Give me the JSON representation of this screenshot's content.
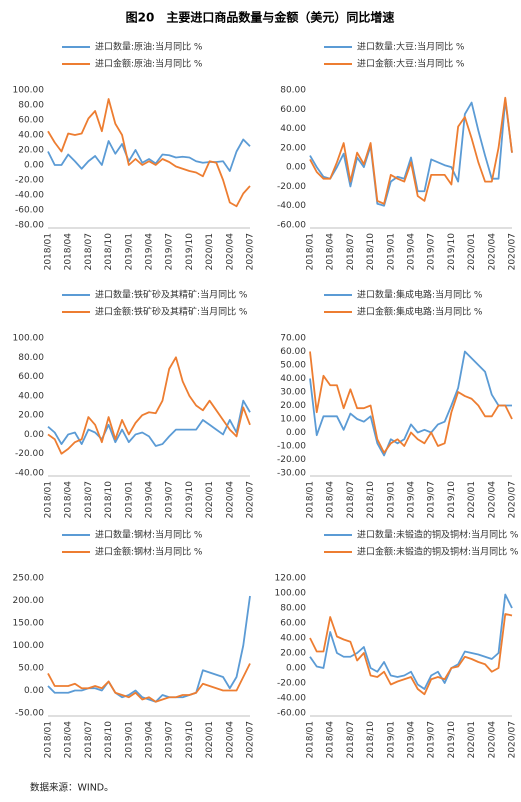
{
  "title": "图20　主要进口商品数量与金额（美元）同比增速",
  "source": "数据来源：WIND。",
  "chart_data": [
    {
      "type": "line",
      "categories": [
        "2018/01",
        null,
        null,
        "2018/04",
        null,
        null,
        "2018/07",
        null,
        null,
        "2018/10",
        null,
        null,
        "2019/01",
        null,
        null,
        "2019/04",
        null,
        null,
        "2019/07",
        null,
        null,
        "2019/10",
        null,
        null,
        "2020/01",
        null,
        null,
        "2020/04",
        null,
        null,
        "2020/07"
      ],
      "ylim": [
        -80,
        100
      ],
      "yticks": [
        {
          "value": 100,
          "label": "100.00"
        },
        {
          "value": 80,
          "label": "80.00"
        },
        {
          "value": 60,
          "label": "60.00"
        },
        {
          "value": 40,
          "label": "40.00"
        },
        {
          "value": 20,
          "label": "20.00"
        },
        {
          "value": 0,
          "label": "0.00"
        },
        {
          "value": -20,
          "label": "-20.00"
        },
        {
          "value": -40,
          "label": "-40.00"
        },
        {
          "value": -60,
          "label": "-60.00"
        },
        {
          "value": -80,
          "label": "-80.00"
        }
      ],
      "series": [
        {
          "name": "进口数量:原油:当月同比 %",
          "color": "#5b9bd5",
          "values": [
            18,
            0,
            0,
            14,
            5,
            -5,
            5,
            12,
            0,
            32,
            15,
            28,
            5,
            20,
            3,
            8,
            2,
            14,
            13,
            10,
            11,
            10,
            5,
            3,
            4,
            4,
            5,
            -8,
            18,
            34,
            25
          ]
        },
        {
          "name": "进口金额:原油:当月同比 %",
          "color": "#ed7d31",
          "values": [
            45,
            30,
            18,
            42,
            40,
            42,
            62,
            72,
            45,
            88,
            55,
            40,
            0,
            8,
            0,
            5,
            0,
            8,
            4,
            -2,
            -5,
            -8,
            -10,
            -15,
            5,
            3,
            -20,
            -50,
            -55,
            -38,
            -28
          ]
        }
      ]
    },
    {
      "type": "line",
      "categories": [
        "2018/01",
        null,
        null,
        "2018/04",
        null,
        null,
        "2018/07",
        null,
        null,
        "2018/10",
        null,
        null,
        "2019/01",
        null,
        null,
        "2019/04",
        null,
        null,
        "2019/07",
        null,
        null,
        "2019/10",
        null,
        null,
        "2020/01",
        null,
        null,
        "2020/04",
        null,
        null,
        "2020/07"
      ],
      "ylim": [
        -60,
        80
      ],
      "yticks": [
        {
          "value": 80,
          "label": "80.00"
        },
        {
          "value": 60,
          "label": "60.00"
        },
        {
          "value": 40,
          "label": "40.00"
        },
        {
          "value": 20,
          "label": "20.00"
        },
        {
          "value": 0,
          "label": "0.00"
        },
        {
          "value": -20,
          "label": "-20.00"
        },
        {
          "value": -40,
          "label": "-40.00"
        },
        {
          "value": -60,
          "label": "-60.00"
        }
      ],
      "series": [
        {
          "name": "进口数量:大豆:当月同比 %",
          "color": "#5b9bd5",
          "values": [
            12,
            0,
            -10,
            -12,
            0,
            14,
            -20,
            10,
            0,
            22,
            -38,
            -40,
            -15,
            -10,
            -12,
            10,
            -25,
            -25,
            8,
            5,
            2,
            0,
            -15,
            55,
            67,
            38,
            12,
            -12,
            -12,
            70,
            15
          ]
        },
        {
          "name": "进口金额:大豆:当月同比 %",
          "color": "#ed7d31",
          "values": [
            8,
            -5,
            -12,
            -12,
            5,
            25,
            -15,
            15,
            3,
            25,
            -35,
            -38,
            -8,
            -12,
            -15,
            5,
            -30,
            -35,
            -8,
            -8,
            -8,
            -18,
            42,
            52,
            30,
            5,
            -15,
            -15,
            20,
            72,
            15
          ]
        }
      ]
    },
    {
      "type": "line",
      "categories": [
        "2018/01",
        null,
        null,
        "2018/04",
        null,
        null,
        "2018/07",
        null,
        null,
        "2018/10",
        null,
        null,
        "2019/01",
        null,
        null,
        "2019/04",
        null,
        null,
        "2019/07",
        null,
        null,
        "2019/10",
        null,
        null,
        "2020/01",
        null,
        null,
        "2020/04",
        null,
        null,
        "2020/07"
      ],
      "ylim": [
        -40,
        100
      ],
      "yticks": [
        {
          "value": 100,
          "label": "100.00"
        },
        {
          "value": 80,
          "label": "80.00"
        },
        {
          "value": 60,
          "label": "60.00"
        },
        {
          "value": 40,
          "label": "40.00"
        },
        {
          "value": 20,
          "label": "20.00"
        },
        {
          "value": 0,
          "label": "0.00"
        },
        {
          "value": -20,
          "label": "-20.00"
        },
        {
          "value": -40,
          "label": "-40.00"
        }
      ],
      "series": [
        {
          "name": "进口数量:铁矿砂及其精矿:当月同比 %",
          "color": "#5b9bd5",
          "values": [
            8,
            2,
            -10,
            0,
            2,
            -10,
            5,
            2,
            -5,
            10,
            -8,
            5,
            -8,
            0,
            2,
            -2,
            -12,
            -10,
            -2,
            5,
            5,
            5,
            5,
            15,
            10,
            5,
            0,
            15,
            2,
            35,
            23
          ]
        },
        {
          "name": "进口金额:铁矿砂及其精矿:当月同比 %",
          "color": "#ed7d31",
          "values": [
            0,
            -5,
            -20,
            -15,
            -8,
            -5,
            18,
            10,
            -8,
            18,
            -5,
            15,
            0,
            12,
            20,
            23,
            22,
            35,
            68,
            80,
            55,
            40,
            30,
            25,
            35,
            25,
            15,
            5,
            -2,
            28,
            10
          ]
        }
      ]
    },
    {
      "type": "line",
      "categories": [
        "2018/01",
        null,
        null,
        "2018/04",
        null,
        null,
        "2018/07",
        null,
        null,
        "2018/10",
        null,
        null,
        "2019/01",
        null,
        null,
        "2019/04",
        null,
        null,
        "2019/07",
        null,
        null,
        "2019/10",
        null,
        null,
        "2020/01",
        null,
        null,
        "2020/04",
        null,
        null,
        "2020/07"
      ],
      "ylim": [
        -30,
        70
      ],
      "yticks": [
        {
          "value": 70,
          "label": "70.00"
        },
        {
          "value": 60,
          "label": "60.00"
        },
        {
          "value": 50,
          "label": "50.00"
        },
        {
          "value": 40,
          "label": "40.00"
        },
        {
          "value": 30,
          "label": "30.00"
        },
        {
          "value": 20,
          "label": "20.00"
        },
        {
          "value": 10,
          "label": "10.00"
        },
        {
          "value": 0,
          "label": "0.00"
        },
        {
          "value": -10,
          "label": "-10.00"
        },
        {
          "value": -20,
          "label": "-20.00"
        },
        {
          "value": -30,
          "label": "-30.00"
        }
      ],
      "series": [
        {
          "name": "进口数量:集成电路:当月同比 %",
          "color": "#5b9bd5",
          "values": [
            40,
            -2,
            12,
            12,
            12,
            2,
            14,
            10,
            8,
            12,
            -8,
            -17,
            -5,
            -8,
            -5,
            6,
            0,
            2,
            0,
            6,
            8,
            20,
            33,
            60,
            55,
            50,
            45,
            28,
            20,
            20,
            20
          ]
        },
        {
          "name": "进口金额:集成电路:当月同比 %",
          "color": "#ed7d31",
          "values": [
            60,
            15,
            42,
            35,
            35,
            18,
            32,
            18,
            18,
            20,
            -5,
            -15,
            -8,
            -5,
            -10,
            0,
            -5,
            -8,
            0,
            -10,
            -8,
            15,
            30,
            27,
            25,
            20,
            12,
            12,
            20,
            20,
            10
          ]
        }
      ]
    },
    {
      "type": "line",
      "categories": [
        "2018/01",
        null,
        null,
        "2018/04",
        null,
        null,
        "2018/07",
        null,
        null,
        "2018/10",
        null,
        null,
        "2019/01",
        null,
        null,
        "2019/04",
        null,
        null,
        "2019/07",
        null,
        null,
        "2019/10",
        null,
        null,
        "2020/01",
        null,
        null,
        "2020/04",
        null,
        null,
        "2020/07"
      ],
      "ylim": [
        -50,
        250
      ],
      "yticks": [
        {
          "value": 250,
          "label": "250.00"
        },
        {
          "value": 200,
          "label": "200.00"
        },
        {
          "value": 150,
          "label": "150.00"
        },
        {
          "value": 100,
          "label": "100.00"
        },
        {
          "value": 50,
          "label": "50.00"
        },
        {
          "value": 0,
          "label": "0.00"
        },
        {
          "value": -50,
          "label": "-50.00"
        }
      ],
      "series": [
        {
          "name": "进口数量:钢材:当月同比 %",
          "color": "#5b9bd5",
          "values": [
            10,
            -5,
            -5,
            -5,
            0,
            0,
            5,
            5,
            0,
            20,
            -5,
            -15,
            -10,
            0,
            -15,
            -20,
            -25,
            -10,
            -15,
            -15,
            -15,
            -10,
            -5,
            45,
            40,
            35,
            30,
            5,
            30,
            100,
            210
          ]
        },
        {
          "name": "进口金额:钢材:当月同比 %",
          "color": "#ed7d31",
          "values": [
            38,
            10,
            10,
            10,
            15,
            5,
            5,
            10,
            5,
            20,
            -5,
            -10,
            -15,
            -5,
            -20,
            -15,
            -25,
            -20,
            -15,
            -15,
            -10,
            -10,
            -5,
            15,
            10,
            5,
            0,
            0,
            0,
            30,
            60
          ]
        }
      ]
    },
    {
      "type": "line",
      "categories": [
        "2018/01",
        null,
        null,
        "2018/04",
        null,
        null,
        "2018/07",
        null,
        null,
        "2018/10",
        null,
        null,
        "2019/01",
        null,
        null,
        "2019/04",
        null,
        null,
        "2019/07",
        null,
        null,
        "2019/10",
        null,
        null,
        "2020/01",
        null,
        null,
        "2020/04",
        null,
        null,
        "2020/07"
      ],
      "ylim": [
        -60,
        120
      ],
      "yticks": [
        {
          "value": 120,
          "label": "120.00"
        },
        {
          "value": 100,
          "label": "100.00"
        },
        {
          "value": 80,
          "label": "80.00"
        },
        {
          "value": 60,
          "label": "60.00"
        },
        {
          "value": 40,
          "label": "40.00"
        },
        {
          "value": 20,
          "label": "20.00"
        },
        {
          "value": 0,
          "label": "0.00"
        },
        {
          "value": -20,
          "label": "-20.00"
        },
        {
          "value": -40,
          "label": "-40.00"
        },
        {
          "value": -60,
          "label": "-60.00"
        }
      ],
      "series": [
        {
          "name": "进口数量:未锻造的铜及铜材:当月同比 %",
          "color": "#5b9bd5",
          "values": [
            15,
            2,
            0,
            48,
            20,
            15,
            15,
            20,
            28,
            0,
            -5,
            8,
            -10,
            -12,
            -10,
            -5,
            -22,
            -28,
            -10,
            -5,
            -20,
            0,
            5,
            22,
            20,
            18,
            15,
            12,
            20,
            98,
            80
          ]
        },
        {
          "name": "进口金额:未锻造的铜及铜材:当月同比 %",
          "color": "#ed7d31",
          "values": [
            40,
            22,
            22,
            68,
            42,
            38,
            35,
            10,
            20,
            -10,
            -12,
            -5,
            -22,
            -18,
            -15,
            -12,
            -28,
            -35,
            -15,
            -12,
            -15,
            0,
            2,
            15,
            12,
            8,
            5,
            -5,
            0,
            72,
            70
          ]
        }
      ]
    }
  ]
}
